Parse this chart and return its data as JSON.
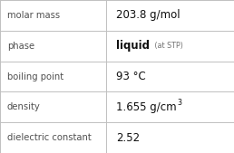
{
  "rows": [
    {
      "label": "molar mass",
      "value": "203.8 g/mol",
      "type": "plain"
    },
    {
      "label": "phase",
      "value": "liquid",
      "type": "phase",
      "suffix": " (at STP)"
    },
    {
      "label": "boiling point",
      "value": "93 °C",
      "type": "plain"
    },
    {
      "label": "density",
      "value": "1.655 g/cm",
      "type": "super",
      "superscript": "3"
    },
    {
      "label": "dielectric constant",
      "value": "2.52",
      "type": "plain"
    }
  ],
  "border_color": "#c0c0c0",
  "background_color": "#ffffff",
  "label_color": "#505050",
  "value_color": "#101010",
  "suffix_color": "#707070",
  "label_fontsize": 7.2,
  "value_fontsize": 8.5,
  "suffix_fontsize": 5.8,
  "super_fontsize": 5.8,
  "col_split": 0.455,
  "fig_width": 2.58,
  "fig_height": 1.69,
  "dpi": 100
}
